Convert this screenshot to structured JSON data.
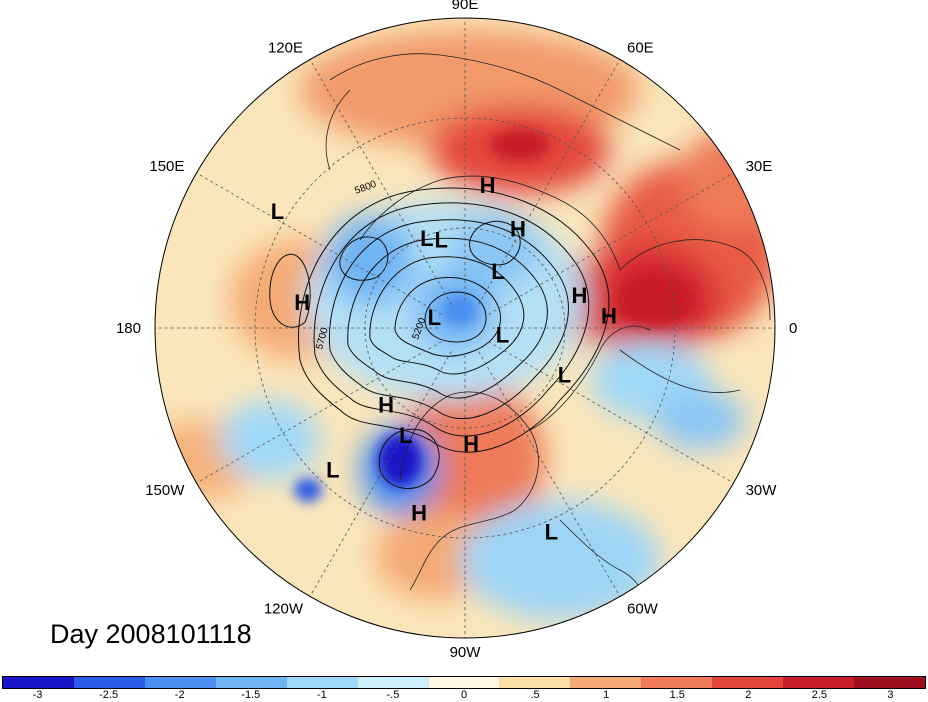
{
  "title": "Day 2008101118",
  "longitude_labels": [
    {
      "text": "90E",
      "lon": 90
    },
    {
      "text": "60E",
      "lon": 60
    },
    {
      "text": "30E",
      "lon": 30
    },
    {
      "text": "0",
      "lon": 0
    },
    {
      "text": "30W",
      "lon": -30
    },
    {
      "text": "60W",
      "lon": -60
    },
    {
      "text": "90W",
      "lon": -90
    },
    {
      "text": "120W",
      "lon": -120
    },
    {
      "text": "150W",
      "lon": -150
    },
    {
      "text": "180",
      "lon": 180
    },
    {
      "text": "150E",
      "lon": 150
    },
    {
      "text": "120E",
      "lon": 120
    }
  ],
  "pressure_centers": [
    {
      "type": "H",
      "lon": 81,
      "lat": 40
    },
    {
      "type": "H",
      "lon": 62,
      "lat": 50
    },
    {
      "type": "L",
      "lon": 148,
      "lat": 19
    },
    {
      "type": "L",
      "lon": 113,
      "lat": 55
    },
    {
      "type": "L",
      "lon": 105,
      "lat": 57
    },
    {
      "type": "L",
      "lon": 60,
      "lat": 66
    },
    {
      "type": "H",
      "lon": 171,
      "lat": 34
    },
    {
      "type": "L",
      "lon": 160,
      "lat": 78
    },
    {
      "type": "H",
      "lon": 16,
      "lat": 48
    },
    {
      "type": "H",
      "lon": 5,
      "lat": 40
    },
    {
      "type": "L",
      "lon": -10,
      "lat": 76
    },
    {
      "type": "L",
      "lon": -25,
      "lat": 51
    },
    {
      "type": "H",
      "lon": -136,
      "lat": 51
    },
    {
      "type": "L",
      "lon": -119,
      "lat": 47
    },
    {
      "type": "L",
      "lon": -133,
      "lat": 26
    },
    {
      "type": "H",
      "lon": -87,
      "lat": 49
    },
    {
      "type": "H",
      "lon": -104,
      "lat": 27
    },
    {
      "type": "L",
      "lon": -67,
      "lat": 19
    }
  ],
  "contour_labels": [
    "5800",
    "5700",
    "5200"
  ],
  "colorbar": {
    "colors": [
      "#1a14c8",
      "#2a5ae8",
      "#4a8ef0",
      "#70b4f4",
      "#a0d8f8",
      "#cceffa",
      "#fcf8e4",
      "#fae0a8",
      "#f5aa74",
      "#ee7a58",
      "#e4463e",
      "#c81e28",
      "#a00e1e"
    ],
    "tick_labels": [
      "-3",
      "-2.5",
      "-2",
      "-1.5",
      "-1",
      "-.5",
      "0",
      ".5",
      "1",
      "1.5",
      "2",
      "2.5",
      "3"
    ]
  },
  "colors": {
    "background_anomaly": "#fae6ba",
    "warm": "#ee7a58",
    "strong_warm": "#d62830",
    "cool": "#a8dcf6",
    "strong_cool": "#1e24cc"
  }
}
